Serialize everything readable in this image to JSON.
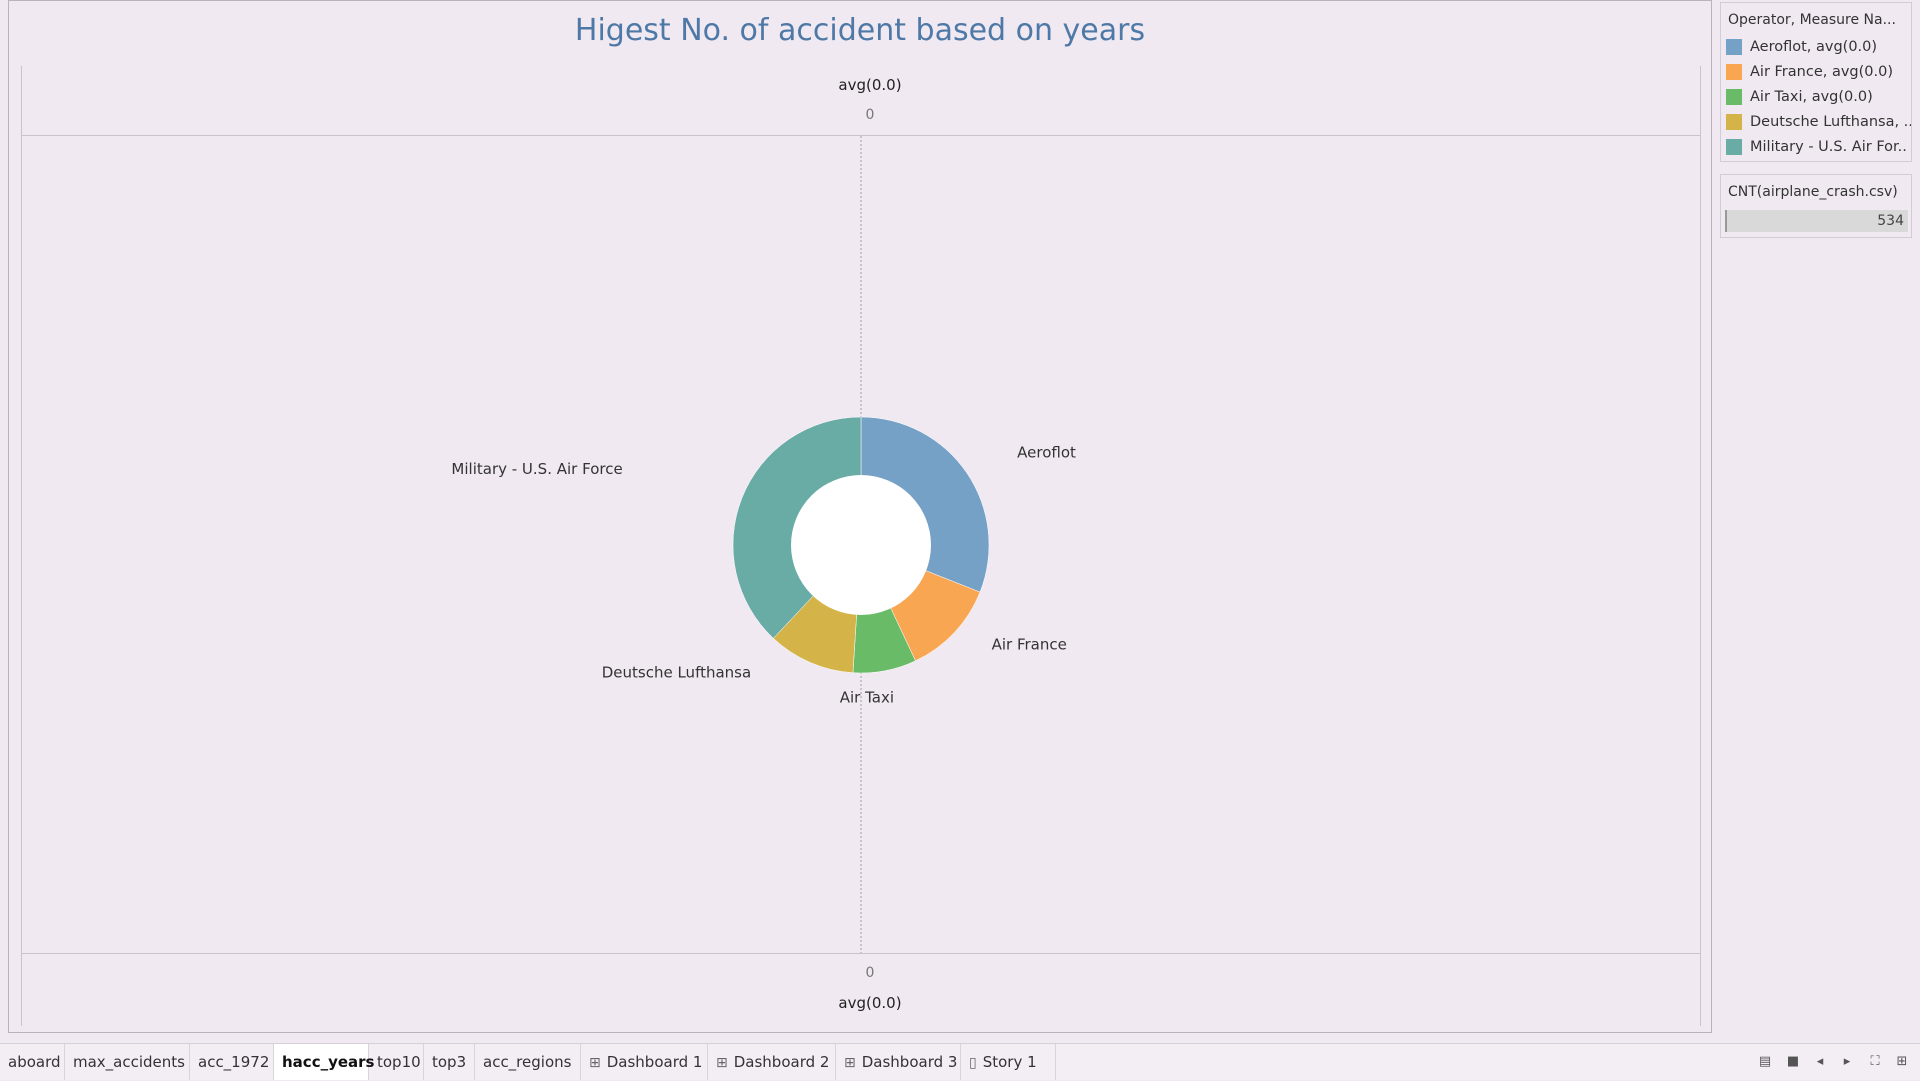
{
  "title": "Higest No. of accident based on years",
  "axes": {
    "top_label": "avg(0.0)",
    "top_tick": "0",
    "bottom_tick": "0",
    "bottom_label": "avg(0.0)"
  },
  "chart_data": {
    "type": "pie",
    "donut": true,
    "title": "Higest No. of accident based on years",
    "slices": [
      {
        "label": "Aeroflot",
        "value": 0.31,
        "color": "#76a1c6"
      },
      {
        "label": "Air France",
        "value": 0.12,
        "color": "#f9a653"
      },
      {
        "label": "Air Taxi",
        "value": 0.08,
        "color": "#6abb68"
      },
      {
        "label": "Deutsche Lufthansa",
        "value": 0.11,
        "color": "#d4b448"
      },
      {
        "label": "Military - U.S. Air Force",
        "value": 0.38,
        "color": "#69aba5"
      }
    ]
  },
  "legend": {
    "title": "Operator, Measure Na...",
    "items": [
      {
        "label": "Aeroflot, avg(0.0)",
        "color": "#76a1c6"
      },
      {
        "label": "Air France, avg(0.0)",
        "color": "#f9a653"
      },
      {
        "label": "Air Taxi, avg(0.0)",
        "color": "#6abb68"
      },
      {
        "label": "Deutsche Lufthansa, ..",
        "color": "#d4b448"
      },
      {
        "label": "Military - U.S. Air For..",
        "color": "#69aba5"
      }
    ]
  },
  "cnt_card": {
    "title": "CNT(airplane_crash.csv)",
    "value": "534"
  },
  "tabs": [
    {
      "label": "aboard",
      "icon": "",
      "active": false
    },
    {
      "label": "max_accidents",
      "icon": "",
      "active": false
    },
    {
      "label": "acc_1972",
      "icon": "",
      "active": false
    },
    {
      "label": "hacc_years",
      "icon": "",
      "active": true
    },
    {
      "label": "top10",
      "icon": "",
      "active": false
    },
    {
      "label": "top3",
      "icon": "",
      "active": false
    },
    {
      "label": "acc_regions",
      "icon": "",
      "active": false
    },
    {
      "label": "Dashboard 1",
      "icon": "dashboard-icon",
      "active": false
    },
    {
      "label": "Dashboard 2",
      "icon": "dashboard-icon",
      "active": false
    },
    {
      "label": "Dashboard 3",
      "icon": "dashboard-icon",
      "active": false
    },
    {
      "label": "Story 1",
      "icon": "story-icon",
      "active": false
    }
  ]
}
